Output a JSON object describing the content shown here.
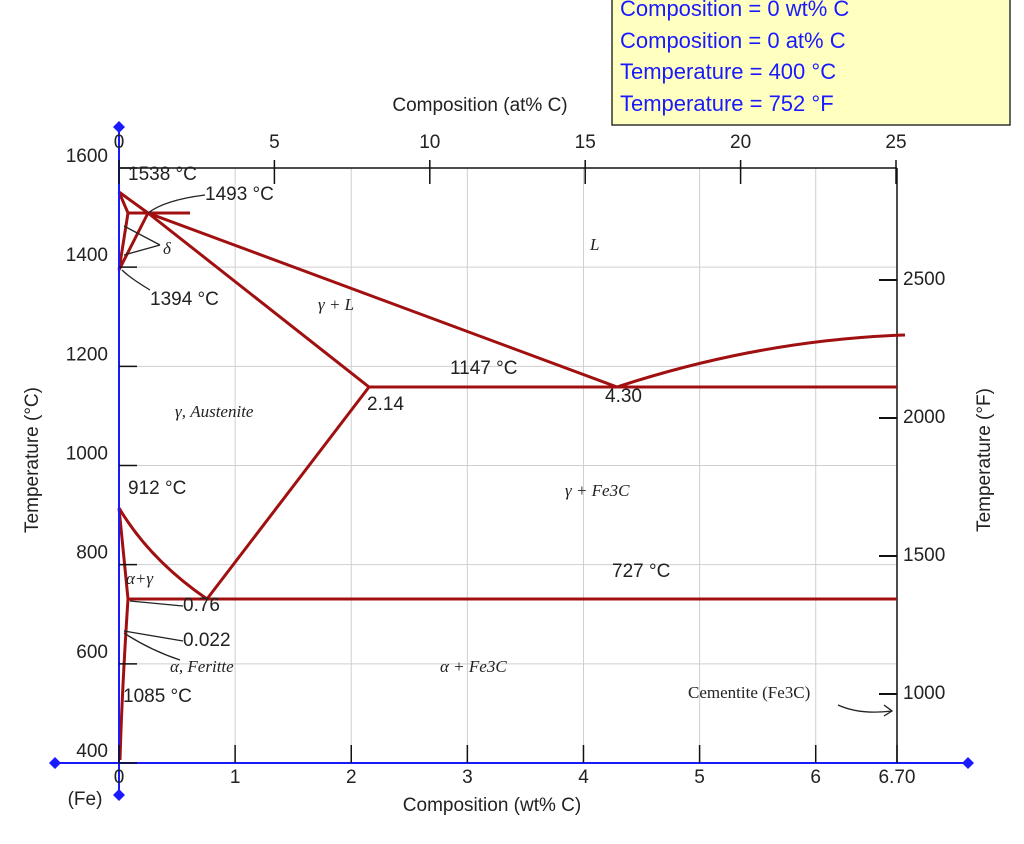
{
  "info_box": {
    "lines": [
      "Composition = 0 wt% C",
      "Composition = 0 at% C",
      "Temperature = 400 °C",
      "Temperature = 752 °F"
    ]
  },
  "axes": {
    "top": {
      "title": "Composition (at% C)",
      "ticks": [
        0,
        5,
        10,
        15,
        20,
        25
      ]
    },
    "bottom": {
      "title": "Composition (wt% C)",
      "ticks": [
        0,
        1,
        2,
        3,
        4,
        5,
        6,
        {
          "value": 6.7,
          "label": "6.70"
        }
      ],
      "end_label": "(Fe)"
    },
    "left": {
      "title": "Temperature (°C)",
      "ticks": [
        400,
        600,
        800,
        1000,
        1200,
        1400,
        1600
      ]
    },
    "right": {
      "title": "Temperature (°F)",
      "ticks": [
        1000,
        1500,
        2000,
        2500
      ]
    }
  },
  "annotations": [
    "1538 °C",
    "1493 °C",
    "δ",
    "1394 °C",
    "γ + L",
    "L",
    "1147 °C",
    "2.14",
    "4.30",
    "γ, Austenite",
    "912 °C",
    "γ + Fe3C",
    "α+γ",
    "727 °C",
    "0.76",
    "0.022",
    "α, Feritte",
    "α + Fe3C",
    "1085 °C",
    "Cementite (Fe3C)"
  ]
}
